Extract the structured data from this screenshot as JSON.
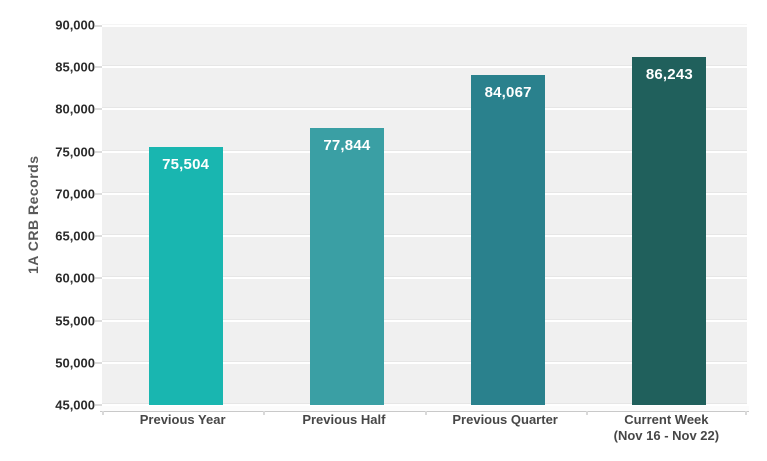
{
  "chart_data": {
    "type": "bar",
    "title": "",
    "ylabel": "1A CRB Records",
    "xlabel": "",
    "categories": [
      "Previous Year",
      "Previous Half",
      "Previous Quarter",
      "Current Week\n(Nov 16 - Nov 22)"
    ],
    "values": [
      75504,
      77844,
      84067,
      86243
    ],
    "value_labels": [
      "75,504",
      "77,844",
      "84,067",
      "86,243"
    ],
    "bar_colors": [
      "#19B6B0",
      "#3A9FA4",
      "#2A818D",
      "#20605C"
    ],
    "ylim": [
      45000,
      90000
    ],
    "ytick_step": 5000,
    "ytick_labels": [
      "90,000",
      "85,000",
      "80,000",
      "75,000",
      "70,000",
      "65,000",
      "60,000",
      "55,000",
      "50,000",
      "45,000"
    ],
    "grid": true,
    "legend": false,
    "colors": {
      "page_bg": "#FFFFFF",
      "plot_bg": "#F0F0F0",
      "grid": "#FFFFFF",
      "ytick_text": "#2B2B2B",
      "axis_title_text": "#595959",
      "category_text": "#474747",
      "value_text": "#FFFFFF",
      "tick_mark": "#DCDCDC"
    }
  }
}
